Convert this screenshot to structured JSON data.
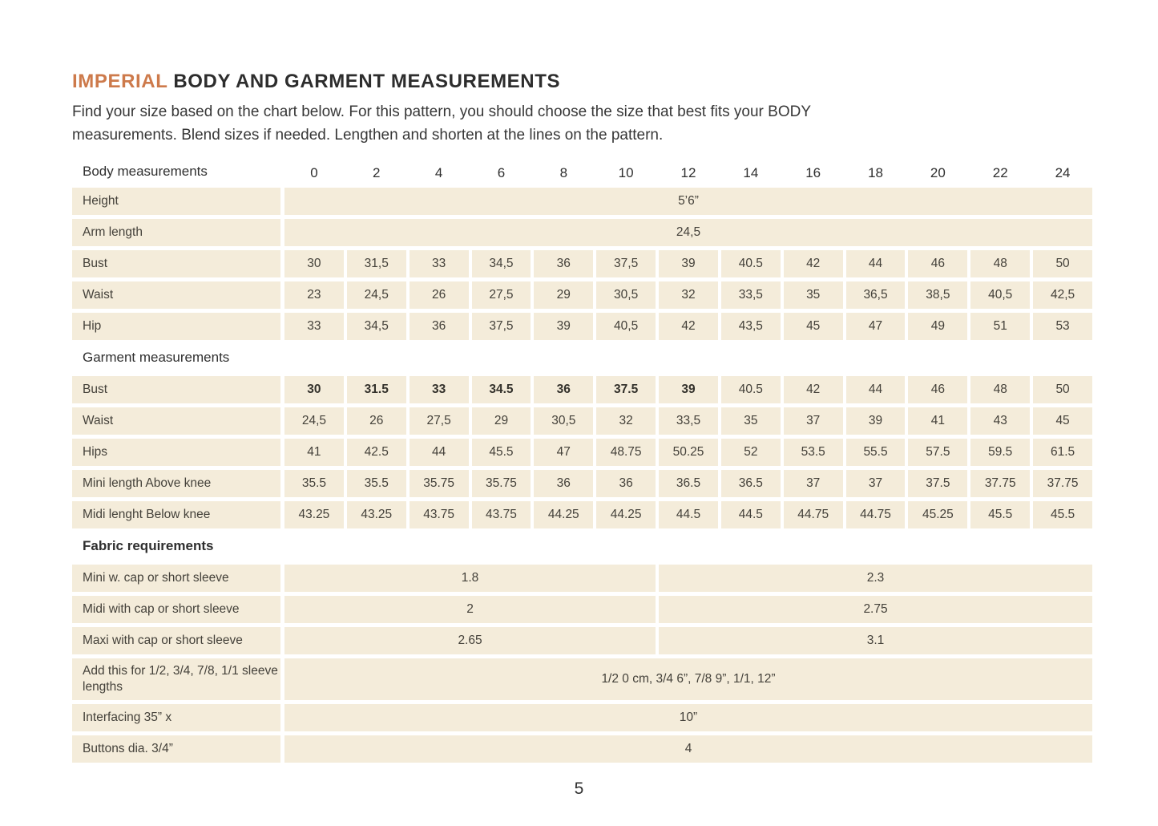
{
  "page": {
    "accent_color": "#cd7a4b",
    "cell_bg": "#f4ecda",
    "title_highlight": "IMPERIAL",
    "title_rest": " BODY AND GARMENT MEASUREMENTS",
    "intro_line1": "Find your size based on the chart below. For this pattern, you should choose the size that best fits your BODY",
    "intro_line2": "measurements. Blend sizes if needed. Lengthen and shorten at the lines on the pattern.",
    "page_number": "5"
  },
  "table": {
    "header_label": "Body measurements",
    "sizes": [
      "0",
      "2",
      "4",
      "6",
      "8",
      "10",
      "12",
      "14",
      "16",
      "18",
      "20",
      "22",
      "24"
    ],
    "rows": [
      {
        "type": "merged",
        "label": "Height",
        "value": "5’6”"
      },
      {
        "type": "merged",
        "label": "Arm length",
        "value": "24,5"
      },
      {
        "type": "values",
        "label": "Bust",
        "values": [
          "30",
          "31,5",
          "33",
          "34,5",
          "36",
          "37,5",
          "39",
          "40.5",
          "42",
          "44",
          "46",
          "48",
          "50"
        ]
      },
      {
        "type": "values",
        "label": "Waist",
        "values": [
          "23",
          "24,5",
          "26",
          "27,5",
          "29",
          "30,5",
          "32",
          "33,5",
          "35",
          "36,5",
          "38,5",
          "40,5",
          "42,5"
        ]
      },
      {
        "type": "values",
        "label": "Hip",
        "values": [
          "33",
          "34,5",
          "36",
          "37,5",
          "39",
          "40,5",
          "42",
          "43,5",
          "45",
          "47",
          "49",
          "51",
          "53"
        ]
      },
      {
        "type": "section",
        "label": "Garment measurements",
        "bold": false
      },
      {
        "type": "values",
        "label": "Bust",
        "bold_first": 7,
        "values": [
          "30",
          "31.5",
          "33",
          "34.5",
          "36",
          "37.5",
          "39",
          "40.5",
          "42",
          "44",
          "46",
          "48",
          "50"
        ]
      },
      {
        "type": "values",
        "label": "Waist",
        "values": [
          "24,5",
          "26",
          "27,5",
          "29",
          "30,5",
          "32",
          "33,5",
          "35",
          "37",
          "39",
          "41",
          "43",
          "45"
        ]
      },
      {
        "type": "values",
        "label": "Hips",
        "values": [
          "41",
          "42.5",
          "44",
          "45.5",
          "47",
          "48.75",
          "50.25",
          "52",
          "53.5",
          "55.5",
          "57.5",
          "59.5",
          "61.5"
        ]
      },
      {
        "type": "values",
        "label": "Mini length Above knee",
        "values": [
          "35.5",
          "35.5",
          "35.75",
          "35.75",
          "36",
          "36",
          "36.5",
          "36.5",
          "37",
          "37",
          "37.5",
          "37.75",
          "37.75"
        ]
      },
      {
        "type": "values",
        "label": "Midi lenght Below knee",
        "values": [
          "43.25",
          "43.25",
          "43.75",
          "43.75",
          "44.25",
          "44.25",
          "44.5",
          "44.5",
          "44.75",
          "44.75",
          "45.25",
          "45.5",
          "45.5"
        ]
      },
      {
        "type": "section",
        "label": "Fabric requirements",
        "bold": true
      },
      {
        "type": "split",
        "label": "Mini w. cap or short sleeve",
        "left": "1.8",
        "right": "2.3"
      },
      {
        "type": "split",
        "label": "Midi with cap or short sleeve",
        "left": "2",
        "right": "2.75"
      },
      {
        "type": "split",
        "label": "Maxi with cap or short sleeve",
        "left": "2.65",
        "right": "3.1"
      },
      {
        "type": "merged",
        "label": "Add this for 1/2, 3/4, 7/8, 1/1 sleeve lengths",
        "value": "1/2 0 cm, 3/4 6”, 7/8 9”, 1/1, 12”",
        "tall": true
      },
      {
        "type": "merged",
        "label": "Interfacing 35” x",
        "value": "10”"
      },
      {
        "type": "merged",
        "label": "Buttons dia. 3/4”",
        "value": "4"
      }
    ]
  }
}
